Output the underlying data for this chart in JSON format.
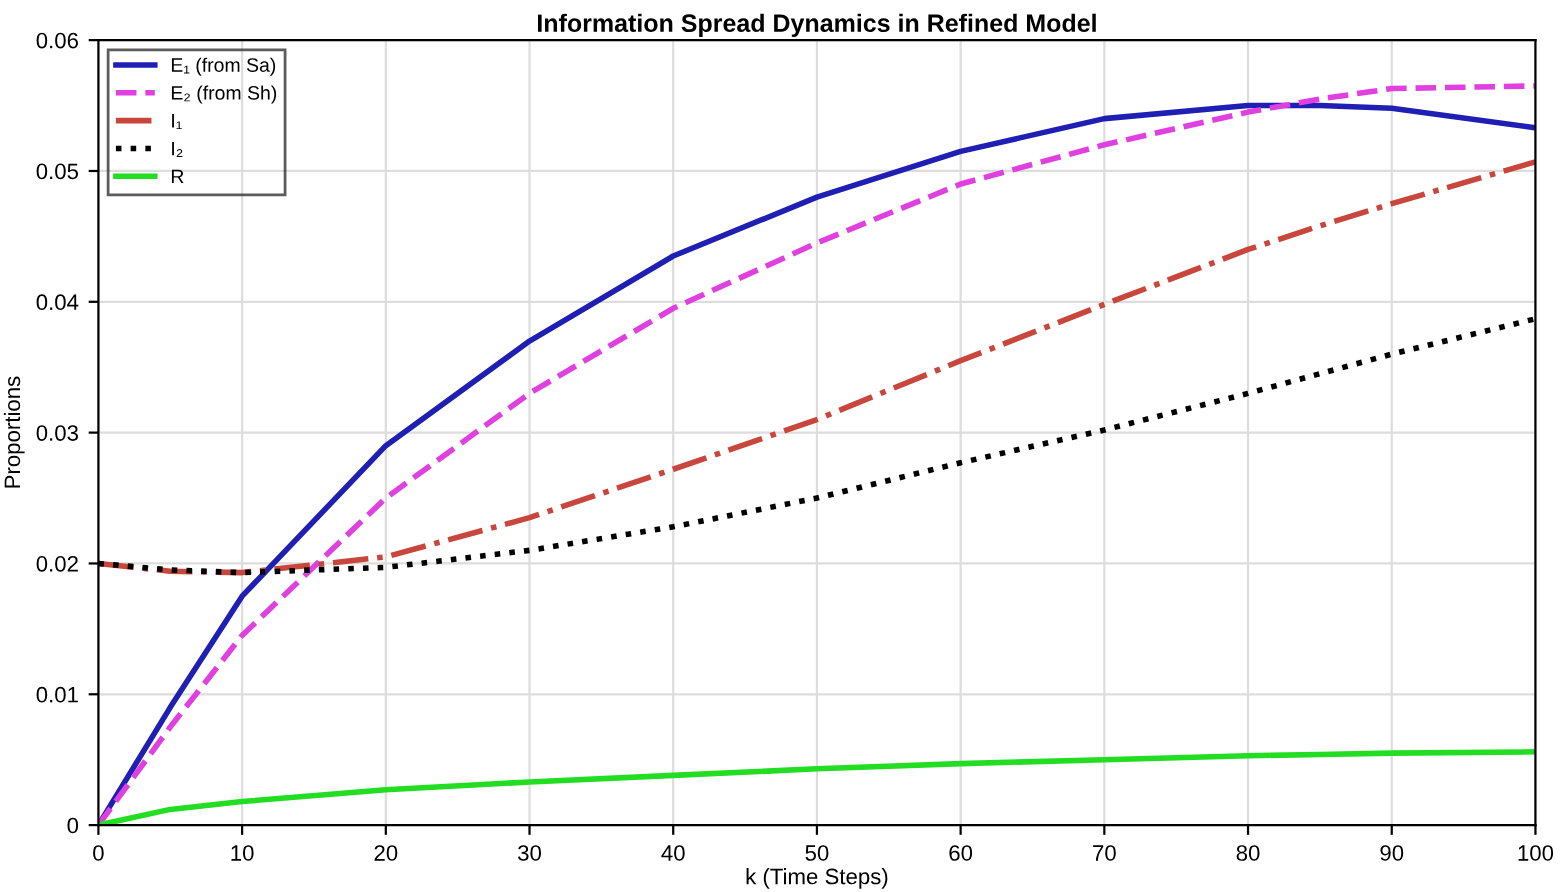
{
  "chart_data": {
    "type": "line",
    "title": "Information Spread Dynamics in Refined Model",
    "xlabel": "k (Time Steps)",
    "ylabel": "Proportions",
    "x": [
      0,
      5,
      10,
      20,
      30,
      40,
      50,
      60,
      70,
      80,
      85,
      90,
      100
    ],
    "series": [
      {
        "name": "E₁ (from Sa)",
        "color": "#1f1fb4",
        "line_style": "solid",
        "values": [
          0,
          0.009,
          0.0175,
          0.029,
          0.037,
          0.0435,
          0.048,
          0.0515,
          0.054,
          0.055,
          0.055,
          0.0548,
          0.0533
        ]
      },
      {
        "name": "E₂ (from Sh)",
        "color": "#e040e0",
        "line_style": "dashed",
        "values": [
          0,
          0.0075,
          0.0145,
          0.025,
          0.033,
          0.0395,
          0.0445,
          0.049,
          0.052,
          0.0545,
          0.0555,
          0.0563,
          0.0565
        ]
      },
      {
        "name": "I₁",
        "color": "#c8463c",
        "line_style": "dashdot",
        "values": [
          0.02,
          0.0194,
          0.0193,
          0.0205,
          0.0235,
          0.0272,
          0.031,
          0.0355,
          0.0398,
          0.044,
          0.0458,
          0.0475,
          0.0507
        ]
      },
      {
        "name": "I₂",
        "color": "#000000",
        "line_style": "dotted",
        "values": [
          0.02,
          0.0195,
          0.0193,
          0.0197,
          0.021,
          0.0228,
          0.025,
          0.0277,
          0.0302,
          0.033,
          0.0345,
          0.036,
          0.0387
        ]
      },
      {
        "name": "R",
        "color": "#22dd22",
        "line_style": "solid",
        "values": [
          0,
          0.0012,
          0.0018,
          0.0027,
          0.0033,
          0.0038,
          0.0043,
          0.0047,
          0.005,
          0.0053,
          0.0054,
          0.0055,
          0.0056
        ]
      }
    ],
    "xlim": [
      0,
      100
    ],
    "xticks": [
      0,
      10,
      20,
      30,
      40,
      50,
      60,
      70,
      80,
      90,
      100
    ],
    "ylim": [
      0,
      0.06
    ],
    "yticks": [
      0,
      0.01,
      0.02,
      0.03,
      0.04,
      0.05,
      0.06
    ],
    "grid": true,
    "legend": "top left"
  }
}
